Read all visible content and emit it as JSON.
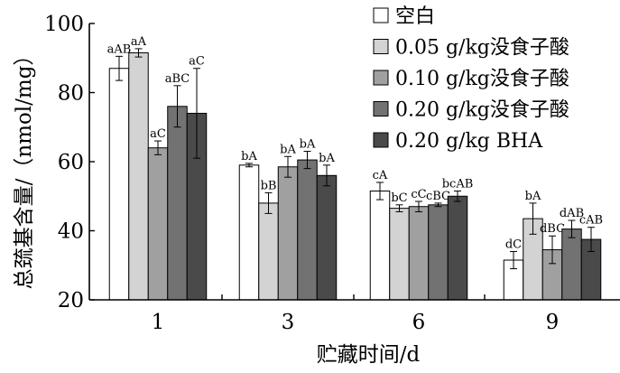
{
  "chart_data": {
    "type": "bar",
    "xlabel": "贮藏时间/d",
    "ylabel": "总巯基含量/（nmol/mg）",
    "ylim": [
      20,
      100
    ],
    "yticks": [
      20,
      40,
      60,
      80,
      100
    ],
    "categories": [
      "1",
      "3",
      "6",
      "9"
    ],
    "legend_position": "top-right",
    "series": [
      {
        "name": "空白",
        "color": "#ffffff",
        "values": [
          87,
          59,
          51.5,
          31.5
        ],
        "errors": [
          3.5,
          0.5,
          2.5,
          2.5
        ],
        "labels": [
          "aAB",
          "bA",
          "cA",
          "dC"
        ]
      },
      {
        "name": "0.05 g/kg没食子酸",
        "color": "#d3d3d3",
        "values": [
          91.5,
          48,
          46.5,
          43.5
        ],
        "errors": [
          1.2,
          3,
          1,
          4.5
        ],
        "labels": [
          "aA",
          "bB",
          "bC",
          "bA"
        ]
      },
      {
        "name": "0.10 g/kg没食子酸",
        "color": "#a0a0a0",
        "values": [
          64,
          58.5,
          47,
          34.5
        ],
        "errors": [
          2,
          3,
          1.5,
          4
        ],
        "labels": [
          "aC",
          "bA",
          "cC",
          "dBC"
        ]
      },
      {
        "name": "0.20 g/kg没食子酸",
        "color": "#727272",
        "values": [
          76,
          60.5,
          47.5,
          40.5
        ],
        "errors": [
          6,
          2.5,
          0.5,
          2.5
        ],
        "labels": [
          "aBC",
          "bA",
          "cBC",
          "dAB"
        ]
      },
      {
        "name": "0.20 g/kg BHA",
        "color": "#4a4a4a",
        "values": [
          74,
          56,
          50,
          37.5
        ],
        "errors": [
          13,
          3,
          1.5,
          3.5
        ],
        "labels": [
          "aC",
          "bA",
          "bcAB",
          "cAB"
        ]
      }
    ]
  }
}
